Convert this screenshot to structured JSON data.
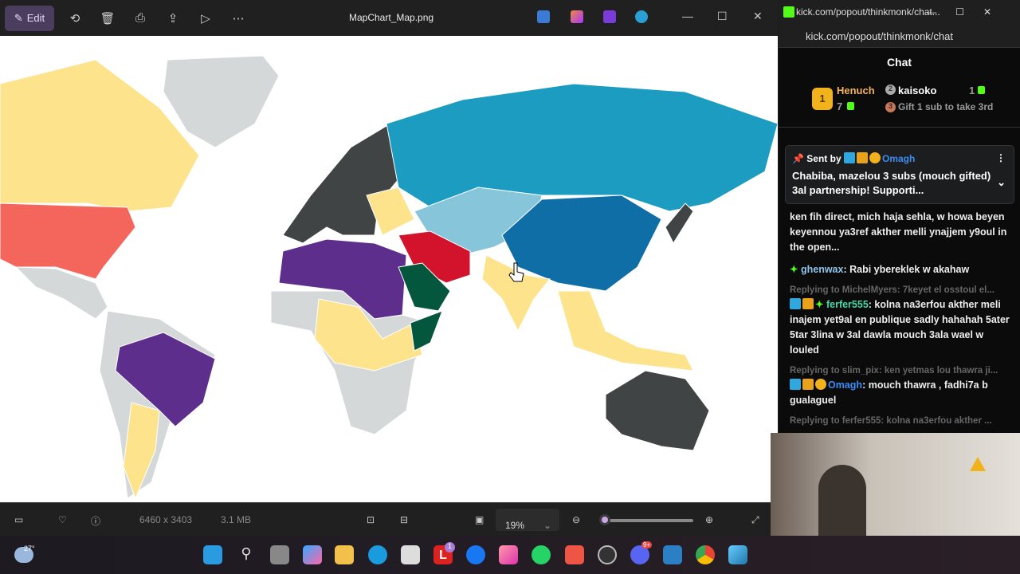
{
  "viewer": {
    "edit_label": "Edit",
    "title": "MapChart_Map.png",
    "dimensions": "6460 x 3403",
    "file_size": "3.1 MB",
    "zoom": "19%",
    "toolbar_icons": [
      "rotate-icon",
      "delete-icon",
      "print-icon",
      "share-icon",
      "slideshow-icon",
      "more-icon"
    ]
  },
  "map_colors": {
    "gray": "#d4d8d9",
    "yellow": "#fde38c",
    "salmon": "#f4665c",
    "purple": "#5d2e8c",
    "dark": "#404444",
    "teal": "#1b9cc0",
    "lightblue": "#86c5da",
    "blue": "#106ea6",
    "red": "#d3122b",
    "green": "#04573d"
  },
  "chat": {
    "tab_title": "kick.com/popout/thinkmonk/chat...",
    "url": "kick.com/popout/thinkmonk/chat",
    "header": "Chat",
    "leaderboard": {
      "first": {
        "rank": "1",
        "name": "Henuch",
        "count": "7"
      },
      "second": {
        "rank": "2",
        "name": "kaisoko",
        "count": "1"
      },
      "third": {
        "rank": "3",
        "text": "Gift 1 sub to take 3rd"
      }
    },
    "pinned": {
      "sent_by": "Sent by",
      "user": "Omagh",
      "text": "Chabiba, mazelou 3 subs (mouch gifted) 3al partnership! Supporti..."
    },
    "messages": [
      {
        "text": "ken fih direct, mich haja sehla, w howa beyen keyennou ya3ref akther melli ynajjem y9oul in the open..."
      },
      {
        "user": "ghenwax",
        "text": ": Rabi ybereklek w akahaw"
      },
      {
        "reply": "Replying to MichelMyers: 7keyet el osstoul el...",
        "user": "ferfer555",
        "text": ": kolna na3erfou akther meli inajem yet9al en publique sadly hahahah 5ater 5tar 3lina w 3al dawla mouch 3ala wael w louled"
      },
      {
        "reply": "Replying to slim_pix: ken yetmas lou thawra ji...",
        "user": "Omagh",
        "text": ": mouch thawra , fadhi7a b gualaguel"
      },
      {
        "reply": "Replying to ferfer555: kolna na3erfou akther ..."
      }
    ]
  },
  "taskbar": {
    "weather": "27°",
    "icons": [
      "start",
      "search",
      "task-view",
      "copilot",
      "file-explorer",
      "edge",
      "store",
      "app-l",
      "facebook",
      "instagram",
      "whatsapp",
      "brave",
      "obs",
      "discord",
      "app-wave",
      "chrome",
      "photos"
    ],
    "badges": {
      "app-l": "1",
      "discord": "9+"
    }
  }
}
